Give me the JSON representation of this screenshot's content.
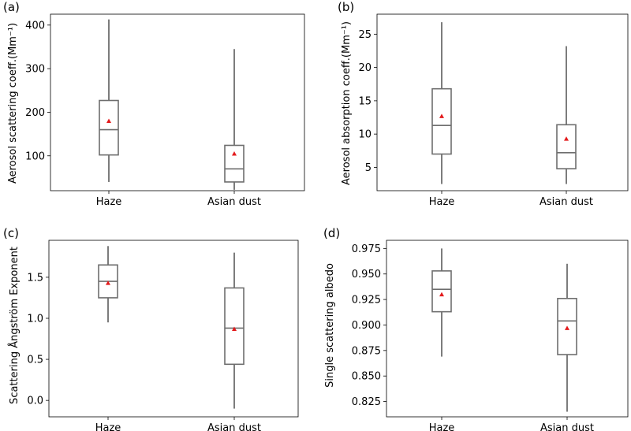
{
  "panels": [
    {
      "label": "(a)",
      "ylabel": "Aerosol scattering coeff.(Mm⁻¹)",
      "ylim": [
        20,
        425
      ],
      "yticks": [
        100,
        200,
        300,
        400
      ],
      "ytick_labels": [
        "100",
        "200",
        "300",
        "400"
      ],
      "categories": [
        "Haze",
        "Asian dust"
      ],
      "boxes": [
        {
          "min": 40,
          "q1": 102,
          "median": 160,
          "q3": 227,
          "max": 413,
          "mean": 180
        },
        {
          "min": 22,
          "q1": 40,
          "median": 70,
          "q3": 124,
          "max": 345,
          "mean": 105
        }
      ]
    },
    {
      "label": "(b)",
      "ylabel": "Aerosol absorption coeff.(Mm⁻¹)",
      "ylim": [
        1.5,
        28
      ],
      "yticks": [
        5,
        10,
        15,
        20,
        25
      ],
      "ytick_labels": [
        "5",
        "10",
        "15",
        "20",
        "25"
      ],
      "categories": [
        "Haze",
        "Asian dust"
      ],
      "boxes": [
        {
          "min": 2.5,
          "q1": 7.0,
          "median": 11.3,
          "q3": 16.8,
          "max": 26.8,
          "mean": 12.7
        },
        {
          "min": 2.5,
          "q1": 4.8,
          "median": 7.2,
          "q3": 11.4,
          "max": 23.2,
          "mean": 9.3
        }
      ]
    },
    {
      "label": "(c)",
      "ylabel": "Scattering Ångström Exponent",
      "ylim": [
        -0.2,
        1.95
      ],
      "yticks": [
        0.0,
        0.5,
        1.0,
        1.5
      ],
      "ytick_labels": [
        "0.0",
        "0.5",
        "1.0",
        "1.5"
      ],
      "categories": [
        "Haze",
        "Asian dust"
      ],
      "boxes": [
        {
          "min": 0.95,
          "q1": 1.25,
          "median": 1.45,
          "q3": 1.65,
          "max": 1.88,
          "mean": 1.43
        },
        {
          "min": -0.1,
          "q1": 0.44,
          "median": 0.88,
          "q3": 1.37,
          "max": 1.8,
          "mean": 0.87
        }
      ]
    },
    {
      "label": "(d)",
      "ylabel": "Single scattering albedo",
      "ylim": [
        0.81,
        0.983
      ],
      "yticks": [
        0.825,
        0.85,
        0.875,
        0.9,
        0.925,
        0.95,
        0.975
      ],
      "ytick_labels": [
        "0.825",
        "0.850",
        "0.875",
        "0.900",
        "0.925",
        "0.950",
        "0.975"
      ],
      "categories": [
        "Haze",
        "Asian dust"
      ],
      "boxes": [
        {
          "min": 0.869,
          "q1": 0.913,
          "median": 0.935,
          "q3": 0.953,
          "max": 0.975,
          "mean": 0.93
        },
        {
          "min": 0.815,
          "q1": 0.871,
          "median": 0.904,
          "q3": 0.926,
          "max": 0.96,
          "mean": 0.897
        }
      ]
    }
  ],
  "chart_data": [
    {
      "type": "box",
      "title": "(a)",
      "ylabel": "Aerosol scattering coeff.(Mm⁻¹)",
      "categories": [
        "Haze",
        "Asian dust"
      ],
      "ylim": [
        20,
        425
      ]
    },
    {
      "type": "box",
      "title": "(b)",
      "ylabel": "Aerosol absorption coeff.(Mm⁻¹)",
      "categories": [
        "Haze",
        "Asian dust"
      ],
      "ylim": [
        1.5,
        28
      ]
    },
    {
      "type": "box",
      "title": "(c)",
      "ylabel": "Scattering Ångström Exponent",
      "categories": [
        "Haze",
        "Asian dust"
      ],
      "ylim": [
        -0.2,
        1.95
      ]
    },
    {
      "type": "box",
      "title": "(d)",
      "ylabel": "Single scattering albedo",
      "categories": [
        "Haze",
        "Asian dust"
      ],
      "ylim": [
        0.81,
        0.983
      ]
    }
  ],
  "colors": {
    "box": "#6e6e6e",
    "mean_marker": "#e31a1c",
    "axis": "#000000"
  }
}
